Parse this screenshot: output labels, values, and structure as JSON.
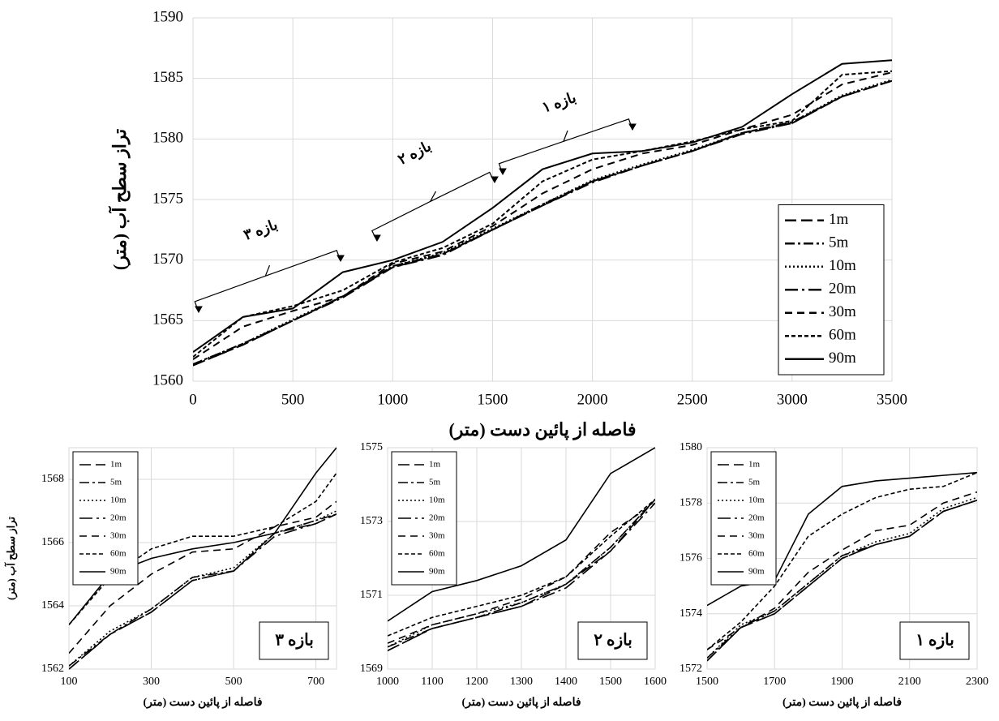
{
  "chart_data": [
    {
      "type": "line",
      "y_label": "تراز سطح آب (متر)",
      "x_label": "فاصله از پائین دست (متر)",
      "annotations": [
        "بازه ۱",
        "بازه ۲",
        "بازه ۳"
      ],
      "x": [
        0,
        250,
        500,
        750,
        1000,
        1250,
        1500,
        1750,
        2000,
        2250,
        2500,
        2750,
        3000,
        3250,
        3500
      ],
      "xlim": [
        0,
        3500
      ],
      "xticks": [
        0,
        500,
        1000,
        1500,
        2000,
        2500,
        3000,
        3500
      ],
      "ylim": [
        1560,
        1590
      ],
      "yticks": [
        1560,
        1565,
        1570,
        1575,
        1580,
        1585,
        1590
      ],
      "grid": true,
      "legend": "lower right",
      "series": [
        {
          "name": "1m",
          "color": "#000000",
          "dash": "14,6",
          "values": [
            1561.3,
            1563,
            1565,
            1567,
            1569.4,
            1570.5,
            1572.5,
            1574.5,
            1576.5,
            1577.8,
            1579,
            1580.5,
            1581.3,
            1583.5,
            1584.8
          ]
        },
        {
          "name": "5m",
          "color": "#000000",
          "dash": "12,4,3,4",
          "values": [
            1561.4,
            1563.1,
            1565,
            1567,
            1569.5,
            1570.5,
            1572.5,
            1574.6,
            1576.5,
            1577.8,
            1579,
            1580.5,
            1581.4,
            1583.5,
            1584.8
          ]
        },
        {
          "name": "10m",
          "color": "#000000",
          "dash": "2,3",
          "values": [
            1561.4,
            1563.1,
            1565.1,
            1567,
            1569.5,
            1570.6,
            1572.6,
            1574.6,
            1576.6,
            1577.9,
            1579.1,
            1580.5,
            1581.4,
            1583.6,
            1584.9
          ]
        },
        {
          "name": "20m",
          "color": "#000000",
          "dash": "16,5,3,5",
          "values": [
            1561.3,
            1563,
            1565,
            1566.9,
            1569.4,
            1570.4,
            1572.5,
            1574.5,
            1576.4,
            1577.8,
            1579,
            1580.4,
            1581.3,
            1583.5,
            1584.8
          ]
        },
        {
          "name": "30m",
          "color": "#000000",
          "dash": "9,6",
          "values": [
            1561.8,
            1564.5,
            1565.8,
            1567,
            1569.7,
            1570.7,
            1572.8,
            1575.5,
            1577.5,
            1578.8,
            1579.5,
            1580.8,
            1582,
            1584.5,
            1585.5
          ]
        },
        {
          "name": "60m",
          "color": "#000000",
          "dash": "5,3",
          "values": [
            1562,
            1565.3,
            1566.2,
            1567.5,
            1569.8,
            1571,
            1573,
            1576.5,
            1578.3,
            1579,
            1579.8,
            1580.8,
            1581.5,
            1585.3,
            1585.6
          ]
        },
        {
          "name": "90m",
          "color": "#000000",
          "dash": "none",
          "values": [
            1562.4,
            1565.3,
            1566,
            1569,
            1570,
            1571.5,
            1574.3,
            1577.5,
            1578.8,
            1579,
            1579.7,
            1581,
            1583.7,
            1586.2,
            1586.5
          ]
        }
      ]
    },
    {
      "type": "line",
      "label": "بازه ۳",
      "y_label": "تراز سطح آب (متر)",
      "x_label": "فاصله از پائین دست (متر)",
      "x": [
        100,
        200,
        300,
        400,
        500,
        600,
        700,
        750
      ],
      "xlim": [
        100,
        750
      ],
      "xticks": [
        100,
        300,
        500,
        700
      ],
      "ylim": [
        1562,
        1569
      ],
      "yticks": [
        1562,
        1564,
        1566,
        1568
      ],
      "grid": true,
      "legend": "upper left",
      "series": [
        {
          "name": "1m",
          "color": "#000000",
          "dash": "14,6",
          "values": [
            1562,
            1563.1,
            1563.8,
            1564.8,
            1565.1,
            1566.3,
            1566.6,
            1566.9
          ]
        },
        {
          "name": "5m",
          "color": "#000000",
          "dash": "12,4,3,4",
          "values": [
            1562.1,
            1563.1,
            1563.9,
            1564.9,
            1565.1,
            1566.3,
            1566.7,
            1566.9
          ]
        },
        {
          "name": "10m",
          "color": "#000000",
          "dash": "2,3",
          "values": [
            1562.1,
            1563.2,
            1563.9,
            1564.9,
            1565.2,
            1566.3,
            1566.7,
            1567
          ]
        },
        {
          "name": "20m",
          "color": "#000000",
          "dash": "16,5,3,5",
          "values": [
            1562,
            1563.1,
            1563.8,
            1564.8,
            1565.1,
            1566.2,
            1566.6,
            1566.9
          ]
        },
        {
          "name": "30m",
          "color": "#000000",
          "dash": "9,6",
          "values": [
            1562.5,
            1564,
            1565,
            1565.7,
            1565.8,
            1566.5,
            1566.8,
            1567.3
          ]
        },
        {
          "name": "60m",
          "color": "#000000",
          "dash": "5,3",
          "values": [
            1563.4,
            1564.9,
            1565.8,
            1566.2,
            1566.2,
            1566.5,
            1567.3,
            1568.2
          ]
        },
        {
          "name": "90m",
          "color": "#000000",
          "dash": "none",
          "values": [
            1563.4,
            1565,
            1565.5,
            1565.8,
            1566,
            1566.3,
            1568.2,
            1569
          ]
        }
      ]
    },
    {
      "type": "line",
      "label": "بازه ۲",
      "x_label": "فاصله از پائین دست (متر)",
      "x": [
        1000,
        1100,
        1200,
        1300,
        1400,
        1500,
        1600
      ],
      "xlim": [
        1000,
        1600
      ],
      "xticks": [
        1000,
        1100,
        1200,
        1300,
        1400,
        1500,
        1600
      ],
      "ylim": [
        1569,
        1575
      ],
      "yticks": [
        1569,
        1571,
        1573,
        1575
      ],
      "grid": true,
      "legend": "upper left",
      "series": [
        {
          "name": "1m",
          "color": "#000000",
          "dash": "14,6",
          "values": [
            1569.5,
            1570.1,
            1570.4,
            1570.7,
            1571.3,
            1572.2,
            1573.6
          ]
        },
        {
          "name": "5m",
          "color": "#000000",
          "dash": "12,4,3,4",
          "values": [
            1569.6,
            1570.1,
            1570.4,
            1570.8,
            1571.3,
            1572.3,
            1573.6
          ]
        },
        {
          "name": "10m",
          "color": "#000000",
          "dash": "2,3",
          "values": [
            1569.6,
            1570.2,
            1570.5,
            1570.8,
            1571.3,
            1572.3,
            1573.6
          ]
        },
        {
          "name": "20m",
          "color": "#000000",
          "dash": "16,5,3,5",
          "values": [
            1569.5,
            1570.1,
            1570.4,
            1570.7,
            1571.2,
            1572.2,
            1573.5
          ]
        },
        {
          "name": "30m",
          "color": "#000000",
          "dash": "9,6",
          "values": [
            1569.7,
            1570.2,
            1570.5,
            1570.9,
            1571.5,
            1572.7,
            1573.5
          ]
        },
        {
          "name": "60m",
          "color": "#000000",
          "dash": "5,3",
          "values": [
            1569.9,
            1570.4,
            1570.7,
            1571,
            1571.5,
            1572.6,
            1573.6
          ]
        },
        {
          "name": "90m",
          "color": "#000000",
          "dash": "none",
          "values": [
            1570.3,
            1571.1,
            1571.4,
            1571.8,
            1572.5,
            1574.3,
            1575
          ]
        }
      ]
    },
    {
      "type": "line",
      "label": "بازه ۱",
      "x_label": "فاصله از پائین دست (متر)",
      "x": [
        1500,
        1600,
        1700,
        1800,
        1900,
        2000,
        2100,
        2200,
        2300
      ],
      "xlim": [
        1500,
        2300
      ],
      "xticks": [
        1500,
        1700,
        1900,
        2100,
        2300
      ],
      "ylim": [
        1572,
        1580
      ],
      "yticks": [
        1572,
        1574,
        1576,
        1578,
        1580
      ],
      "grid": true,
      "legend": "upper left",
      "series": [
        {
          "name": "1m",
          "color": "#000000",
          "dash": "14,6",
          "values": [
            1572.3,
            1573.5,
            1574,
            1575,
            1576,
            1576.5,
            1576.8,
            1577.7,
            1578.1
          ]
        },
        {
          "name": "5m",
          "color": "#000000",
          "dash": "12,4,3,4",
          "values": [
            1572.4,
            1573.5,
            1574.1,
            1575.1,
            1576.1,
            1576.5,
            1576.8,
            1577.7,
            1578.1
          ]
        },
        {
          "name": "10m",
          "color": "#000000",
          "dash": "2,3",
          "values": [
            1572.4,
            1573.6,
            1574.1,
            1575.1,
            1576.1,
            1576.6,
            1576.9,
            1577.8,
            1578.2
          ]
        },
        {
          "name": "20m",
          "color": "#000000",
          "dash": "16,5,3,5",
          "values": [
            1572.3,
            1573.5,
            1574,
            1575,
            1576,
            1576.5,
            1576.8,
            1577.7,
            1578.1
          ]
        },
        {
          "name": "30m",
          "color": "#000000",
          "dash": "9,6",
          "values": [
            1572.7,
            1573.5,
            1574.2,
            1575.5,
            1576.3,
            1577,
            1577.2,
            1578,
            1578.4
          ]
        },
        {
          "name": "60m",
          "color": "#000000",
          "dash": "5,3",
          "values": [
            1572.7,
            1573.7,
            1575,
            1576.8,
            1577.6,
            1578.2,
            1578.5,
            1578.6,
            1579.1
          ]
        },
        {
          "name": "90m",
          "color": "#000000",
          "dash": "none",
          "values": [
            1574.3,
            1575,
            1575.2,
            1577.6,
            1578.6,
            1578.8,
            1578.9,
            1579,
            1579.1
          ]
        }
      ]
    }
  ]
}
